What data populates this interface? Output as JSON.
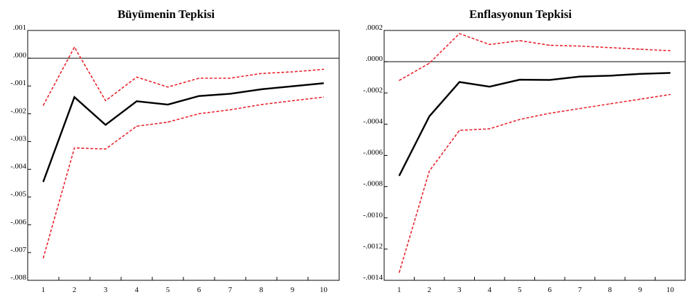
{
  "chart_data": [
    {
      "type": "line",
      "title": "Büyümenin Tepkisi",
      "xlabel": "",
      "ylabel": "",
      "x": [
        1,
        2,
        3,
        4,
        5,
        6,
        7,
        8,
        9,
        10
      ],
      "ylim": [
        -0.008,
        0.001
      ],
      "yticks": [
        0.001,
        0.0,
        -0.001,
        -0.002,
        -0.003,
        -0.004,
        -0.005,
        -0.006,
        -0.007,
        -0.008
      ],
      "ytick_labels": [
        ".001",
        ".000",
        "-.001",
        "-.002",
        "-.003",
        "-.004",
        "-.005",
        "-.006",
        "-.007",
        "-.008"
      ],
      "xtick_labels": [
        "1",
        "2",
        "3",
        "4",
        "5",
        "6",
        "7",
        "8",
        "9",
        "10"
      ],
      "zero_line": true,
      "grid": false,
      "series": [
        {
          "role": "response",
          "color": "#000000",
          "style": "solid",
          "values": [
            -0.00445,
            -0.0014,
            -0.0024,
            -0.00155,
            -0.00167,
            -0.00136,
            -0.00128,
            -0.00112,
            -0.00101,
            -0.0009
          ]
        },
        {
          "role": "upper-band",
          "color": "#e8202a",
          "style": "dashed",
          "values": [
            -0.0017,
            0.0004,
            -0.00153,
            -0.00068,
            -0.00104,
            -0.00072,
            -0.00072,
            -0.00055,
            -0.00049,
            -0.0004
          ]
        },
        {
          "role": "lower-band",
          "color": "#e8202a",
          "style": "dashed",
          "values": [
            -0.0072,
            -0.00323,
            -0.00327,
            -0.00245,
            -0.0023,
            -0.002,
            -0.00186,
            -0.00167,
            -0.00153,
            -0.0014
          ]
        }
      ]
    },
    {
      "type": "line",
      "title": "Enflasyonun Tepkisi",
      "xlabel": "",
      "ylabel": "",
      "x": [
        1,
        2,
        3,
        4,
        5,
        6,
        7,
        8,
        9,
        10
      ],
      "ylim": [
        -0.0014,
        0.0002
      ],
      "yticks": [
        0.0002,
        0.0,
        -0.0002,
        -0.0004,
        -0.0006,
        -0.0008,
        -0.001,
        -0.0012,
        -0.0014
      ],
      "ytick_labels": [
        ".0002",
        ".0000",
        "-.0002",
        "-.0004",
        "-.0006",
        "-.0008",
        "-.0010",
        "-.0012",
        "-.0014"
      ],
      "xtick_labels": [
        "1",
        "2",
        "3",
        "4",
        "5",
        "6",
        "7",
        "8",
        "9",
        "10"
      ],
      "zero_line": true,
      "grid": false,
      "series": [
        {
          "role": "response",
          "color": "#000000",
          "style": "solid",
          "values": [
            -0.00073,
            -0.00035,
            -0.00013,
            -0.00016,
            -0.000115,
            -0.000117,
            -9.5e-05,
            -9e-05,
            -7.8e-05,
            -7.2e-05
          ]
        },
        {
          "role": "upper-band",
          "color": "#e8202a",
          "style": "dashed",
          "values": [
            -0.00012,
            -1e-05,
            0.00018,
            0.00011,
            0.000135,
            0.000105,
            0.0001,
            9e-05,
            8e-05,
            7e-05
          ]
        },
        {
          "role": "lower-band",
          "color": "#e8202a",
          "style": "dashed",
          "values": [
            -0.00135,
            -0.0007,
            -0.00044,
            -0.00043,
            -0.00037,
            -0.00033,
            -0.0003,
            -0.00027,
            -0.00024,
            -0.00021
          ]
        }
      ]
    }
  ]
}
